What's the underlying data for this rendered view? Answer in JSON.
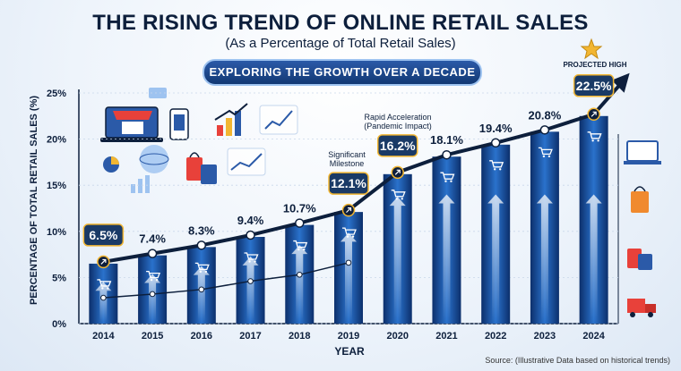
{
  "header": {
    "title": "THE RISING TREND OF ONLINE RETAIL SALES",
    "subtitle": "(As a Percentage of Total Retail Sales)",
    "banner": "EXPLORING THE GROWTH OVER A DECADE"
  },
  "footer": {
    "source": "Source: (Illustrative Data based on historical trends)"
  },
  "annotations": {
    "milestone": [
      "Significant",
      "Milestone"
    ],
    "acceleration": [
      "Rapid Acceleration",
      "(Pandemic Impact)"
    ],
    "projected": "PROJECTED HIGH"
  },
  "icons": [
    "star-icon",
    "shopping-cart-icon",
    "laptop-store-icon",
    "shopping-bags-icon",
    "delivery-truck-icon",
    "smartphone-icon",
    "rising-arrow-icon"
  ],
  "colors": {
    "bar": "#1f5fb4",
    "bar_dark": "#0c2f6b",
    "line": "#0d1f3c",
    "highlight_box": "#1a3a66",
    "highlight_border": "#f2b632",
    "label_dark": "#0d1f3c"
  },
  "chart_data": {
    "type": "bar",
    "title": "THE RISING TREND OF ONLINE RETAIL SALES",
    "subtitle": "(As a Percentage of Total Retail Sales)",
    "xlabel": "YEAR",
    "ylabel": "PERCENTAGE OF TOTAL RETAIL SALES (%)",
    "categories": [
      "2014",
      "2015",
      "2016",
      "2017",
      "2018",
      "2019",
      "2020",
      "2021",
      "2022",
      "2023",
      "2024"
    ],
    "values": [
      6.5,
      7.4,
      8.3,
      9.4,
      10.7,
      12.1,
      16.2,
      18.1,
      19.4,
      20.8,
      22.5
    ],
    "labels": [
      "6.5%",
      "7.4%",
      "8.3%",
      "9.4%",
      "10.7%",
      "12.1%",
      "16.2%",
      "18.1%",
      "19.4%",
      "20.8%",
      "22.5%"
    ],
    "highlighted": [
      "2014",
      "2019",
      "2020",
      "2024"
    ],
    "secondary_line": [
      {
        "x": "2014",
        "y": 2.8
      },
      {
        "x": "2015",
        "y": 3.2
      },
      {
        "x": "2016",
        "y": 3.7
      },
      {
        "x": "2017",
        "y": 4.6
      },
      {
        "x": "2018",
        "y": 5.3
      },
      {
        "x": "2019",
        "y": 6.6
      }
    ],
    "ylim": [
      0,
      25
    ],
    "yticks": [
      "0%",
      "5%",
      "10%",
      "15%",
      "20%",
      "25%"
    ],
    "grid": true
  }
}
